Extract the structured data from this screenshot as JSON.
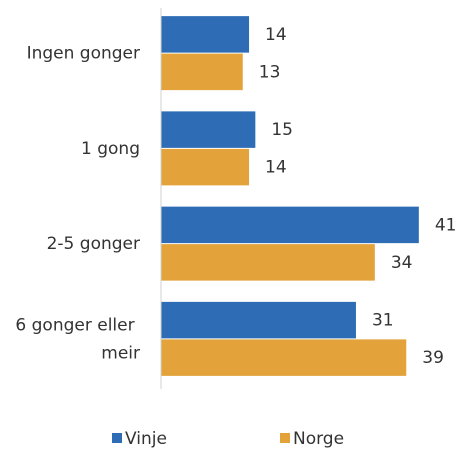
{
  "chart_data": {
    "type": "bar",
    "orientation": "horizontal",
    "categories": [
      "Ingen gonger",
      "1 gong",
      "2-5 gonger",
      "6 gonger eller meir"
    ],
    "series": [
      {
        "name": "Vinje",
        "color": "#2e6db5",
        "values": [
          14,
          15,
          41,
          31
        ]
      },
      {
        "name": "Norge",
        "color": "#e3a33a",
        "values": [
          13,
          14,
          34,
          39
        ]
      }
    ],
    "xlim": [
      0,
      45
    ],
    "legend": "bottom"
  }
}
